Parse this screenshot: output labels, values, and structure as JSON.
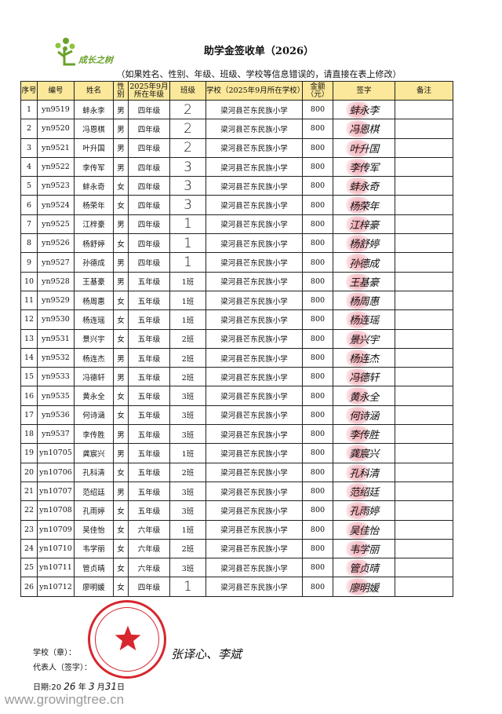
{
  "logo": {
    "text": "成长之树",
    "color": "#6aa22a"
  },
  "title": "助学金签收单（2026）",
  "subtitle": "（如果姓名、性别、年级、班级、学校等信息错误的，请直接在表上修改）",
  "table": {
    "header_color": "#fbe89a",
    "headers": [
      "序号",
      "编号",
      "姓名",
      "性别",
      "2025年9月所在年级",
      "班级",
      "学校（2025年9月所在学校）",
      "金额（元）",
      "签字",
      "备注"
    ],
    "rows": [
      [
        "1",
        "yn9519",
        "蚌永李",
        "男",
        "四年级",
        "2",
        "梁河县芒东民族小学",
        "800",
        "蚌永李",
        ""
      ],
      [
        "2",
        "yn9520",
        "冯恩棋",
        "男",
        "四年级",
        "2",
        "梁河县芒东民族小学",
        "800",
        "冯恩棋",
        ""
      ],
      [
        "3",
        "yn9521",
        "叶升国",
        "男",
        "四年级",
        "2",
        "梁河县芒东民族小学",
        "800",
        "叶升国",
        ""
      ],
      [
        "4",
        "yn9522",
        "李传军",
        "男",
        "四年级",
        "3",
        "梁河县芒东民族小学",
        "800",
        "李传军",
        ""
      ],
      [
        "5",
        "yn9523",
        "蚌永奇",
        "女",
        "四年级",
        "3",
        "梁河县芒东民族小学",
        "800",
        "蚌永奇",
        ""
      ],
      [
        "6",
        "yn9524",
        "杨荣年",
        "女",
        "四年级",
        "3",
        "梁河县芒东民族小学",
        "800",
        "杨荣年",
        ""
      ],
      [
        "7",
        "yn9525",
        "江梓豪",
        "男",
        "四年级",
        "1",
        "梁河县芒东民族小学",
        "800",
        "江梓豪",
        ""
      ],
      [
        "8",
        "yn9526",
        "杨舒婷",
        "女",
        "四年级",
        "1",
        "梁河县芒东民族小学",
        "800",
        "杨舒婷",
        ""
      ],
      [
        "9",
        "yn9527",
        "孙德成",
        "男",
        "四年级",
        "1",
        "梁河县芒东民族小学",
        "800",
        "孙德成",
        ""
      ],
      [
        "10",
        "yn9528",
        "王基豪",
        "男",
        "五年级",
        "1班",
        "梁河县芒东民族小学",
        "800",
        "王基豪",
        ""
      ],
      [
        "11",
        "yn9529",
        "杨周惠",
        "女",
        "五年级",
        "1班",
        "梁河县芒东民族小学",
        "800",
        "杨周惠",
        ""
      ],
      [
        "12",
        "yn9530",
        "杨连瑶",
        "女",
        "五年级",
        "1班",
        "梁河县芒东民族小学",
        "800",
        "杨连瑶",
        ""
      ],
      [
        "13",
        "yn9531",
        "景兴宇",
        "女",
        "五年级",
        "2班",
        "梁河县芒东民族小学",
        "800",
        "景兴宇",
        ""
      ],
      [
        "14",
        "yn9532",
        "杨连杰",
        "男",
        "五年级",
        "2班",
        "梁河县芒东民族小学",
        "800",
        "杨连杰",
        ""
      ],
      [
        "15",
        "yn9533",
        "冯德轩",
        "男",
        "五年级",
        "2班",
        "梁河县芒东民族小学",
        "800",
        "冯德轩",
        ""
      ],
      [
        "16",
        "yn9535",
        "黄永全",
        "女",
        "五年级",
        "3班",
        "梁河县芒东民族小学",
        "800",
        "黄永全",
        ""
      ],
      [
        "17",
        "yn9536",
        "何诗涵",
        "女",
        "五年级",
        "3班",
        "梁河县芒东民族小学",
        "800",
        "何诗涵",
        ""
      ],
      [
        "18",
        "yn9537",
        "李传胜",
        "男",
        "五年级",
        "3班",
        "梁河县芒东民族小学",
        "800",
        "李传胜",
        ""
      ],
      [
        "19",
        "yn10705",
        "龚宸兴",
        "男",
        "五年级",
        "1班",
        "梁河县芒东民族小学",
        "800",
        "龚宸兴",
        ""
      ],
      [
        "20",
        "yn10706",
        "孔科清",
        "女",
        "五年级",
        "2班",
        "梁河县芒东民族小学",
        "800",
        "孔科清",
        ""
      ],
      [
        "21",
        "yn10707",
        "范绍廷",
        "男",
        "五年级",
        "3班",
        "梁河县芒东民族小学",
        "800",
        "范绍廷",
        ""
      ],
      [
        "22",
        "yn10708",
        "孔雨婷",
        "女",
        "五年级",
        "3班",
        "梁河县芒东民族小学",
        "800",
        "孔雨婷",
        ""
      ],
      [
        "23",
        "yn10709",
        "吴佳怡",
        "女",
        "六年级",
        "1班",
        "梁河县芒东民族小学",
        "800",
        "吴佳怡",
        ""
      ],
      [
        "24",
        "yn10710",
        "韦学丽",
        "女",
        "六年级",
        "2班",
        "梁河县芒东民族小学",
        "800",
        "韦学丽",
        ""
      ],
      [
        "25",
        "yn10711",
        "管贞晴",
        "女",
        "六年级",
        "3班",
        "梁河县芒东民族小学",
        "800",
        "管贞晴",
        ""
      ],
      [
        "26",
        "yn10712",
        "廖明媛",
        "女",
        "四年级",
        "1",
        "梁河县芒东民族小学",
        "800",
        "廖明媛",
        ""
      ]
    ]
  },
  "footer": {
    "school_seal_label": "学校（章）：",
    "representative_label": "代表人（签字）：",
    "representative_signature": "张译心、李斌",
    "date_label": "日期:20",
    "date_year": "26",
    "date_year_unit": "年",
    "date_month": "3",
    "date_month_unit": "月",
    "date_day": "31",
    "date_day_unit": "日"
  },
  "stamp_color": "#d7262e",
  "watermark": "www.growingtree.cn"
}
